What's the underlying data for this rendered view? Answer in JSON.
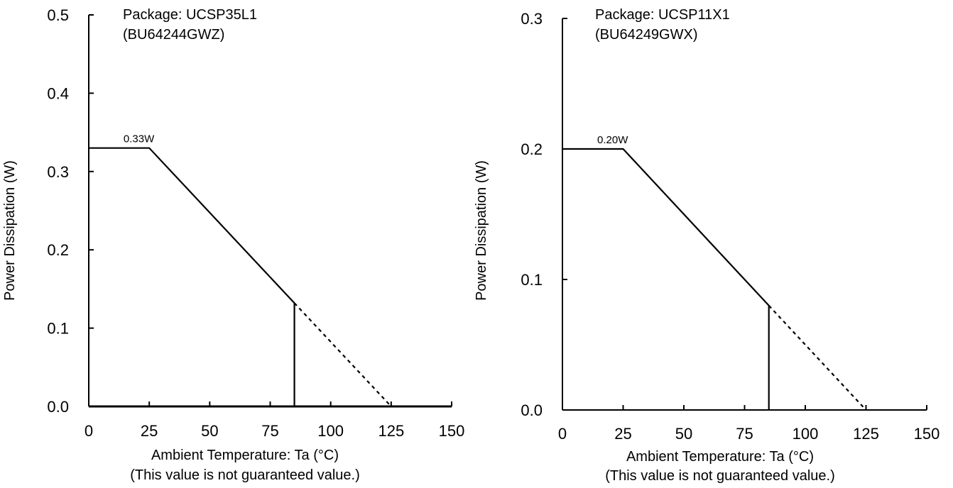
{
  "chart_data": [
    {
      "type": "line",
      "title": "Package: UCSP35L1",
      "subtitle": "(BU64244GWZ)",
      "xlabel": "Ambient Temperature: Ta (°C)",
      "note": "(This value is not guaranteed value.)",
      "ylabel": "Power Dissipation (W)",
      "xlim": [
        0,
        150
      ],
      "ylim": [
        0,
        0.5
      ],
      "xticks": [
        0,
        25,
        50,
        75,
        100,
        125,
        150
      ],
      "yticks": [
        "0.0",
        "0.1",
        "0.2",
        "0.3",
        "0.4",
        "0.5"
      ],
      "grid": false,
      "series": [
        {
          "style": "solid",
          "x": [
            0,
            25,
            85
          ],
          "y": [
            0.33,
            0.33,
            0.132
          ]
        },
        {
          "style": "dashed",
          "x": [
            85,
            125
          ],
          "y": [
            0.132,
            0
          ]
        },
        {
          "style": "solid",
          "x": [
            85,
            85
          ],
          "y": [
            0,
            0.132
          ]
        }
      ],
      "annotations": [
        {
          "text": "0.33W",
          "x": 12,
          "y": 0.33
        }
      ]
    },
    {
      "type": "line",
      "title": "Package: UCSP11X1",
      "subtitle": "(BU64249GWX)",
      "xlabel": "Ambient Temperature: Ta (°C)",
      "note": "(This value is not guaranteed value.)",
      "ylabel": "Power Dissipation (W)",
      "xlim": [
        0,
        150
      ],
      "ylim": [
        0,
        0.3
      ],
      "xticks": [
        0,
        25,
        50,
        75,
        100,
        125,
        150
      ],
      "yticks": [
        "0.0",
        "0.1",
        "0.2",
        "0.3"
      ],
      "grid": false,
      "series": [
        {
          "style": "solid",
          "x": [
            0,
            25,
            85
          ],
          "y": [
            0.2,
            0.2,
            0.08
          ]
        },
        {
          "style": "dashed",
          "x": [
            85,
            125
          ],
          "y": [
            0.08,
            0
          ]
        },
        {
          "style": "solid",
          "x": [
            85,
            85
          ],
          "y": [
            0,
            0.08
          ]
        }
      ],
      "annotations": [
        {
          "text": "0.20W",
          "x": 12,
          "y": 0.2
        }
      ]
    }
  ]
}
